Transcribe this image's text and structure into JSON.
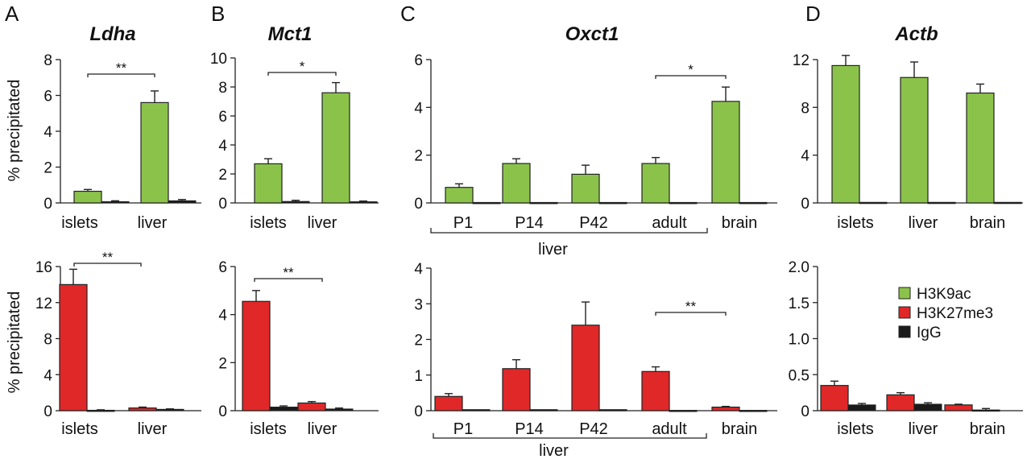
{
  "panels": {
    "A": {
      "letter": "A",
      "title": "Ldha"
    },
    "B": {
      "letter": "B",
      "title": "Mct1"
    },
    "C": {
      "letter": "C",
      "title": "Oxct1"
    },
    "D": {
      "letter": "D",
      "title": "Actb"
    }
  },
  "ylabel": "% precipitated",
  "legend": [
    {
      "name": "H3K9ac",
      "color": "#8bc34a"
    },
    {
      "name": "H3K27me3",
      "color": "#e02828"
    },
    {
      "name": "IgG",
      "color": "#1a1a1a"
    }
  ],
  "colors": {
    "H3K9ac": "#8bc34a",
    "H3K27me3": "#e02828",
    "IgG": "#1a1a1a",
    "stroke": "#222222"
  },
  "chart_data": [
    {
      "id": "A_top",
      "type": "bar",
      "title": "Ldha",
      "ylabel": "% precipitated",
      "categories": [
        "islets",
        "liver"
      ],
      "ylim": [
        0,
        8
      ],
      "yticks": [
        "0",
        "2",
        "4",
        "6",
        "8"
      ],
      "series": [
        {
          "name": "H3K9ac",
          "values": [
            0.65,
            5.6
          ],
          "errors": [
            0.1,
            0.65
          ]
        },
        {
          "name": "IgG",
          "values": [
            0.07,
            0.12
          ],
          "errors": [
            0.05,
            0.07
          ]
        }
      ],
      "significance": [
        {
          "from": "islets",
          "to": "liver",
          "label": "**"
        }
      ]
    },
    {
      "id": "B_top",
      "type": "bar",
      "title": "Mct1",
      "ylabel": "",
      "categories": [
        "islets",
        "liver"
      ],
      "ylim": [
        0,
        10
      ],
      "yticks": [
        "0",
        "2",
        "4",
        "6",
        "8",
        "10"
      ],
      "series": [
        {
          "name": "H3K9ac",
          "values": [
            2.7,
            7.6
          ],
          "errors": [
            0.35,
            0.7
          ]
        },
        {
          "name": "IgG",
          "values": [
            0.1,
            0.08
          ],
          "errors": [
            0.08,
            0.05
          ]
        }
      ],
      "significance": [
        {
          "from": "islets",
          "to": "liver",
          "label": "*"
        }
      ]
    },
    {
      "id": "C_top",
      "type": "bar",
      "title": "Oxct1",
      "ylabel": "",
      "categories": [
        "P1",
        "P14",
        "P42",
        "adult",
        "brain"
      ],
      "group_label": "liver",
      "ylim": [
        0,
        6
      ],
      "yticks": [
        "0",
        "2",
        "4",
        "6"
      ],
      "series": [
        {
          "name": "H3K9ac",
          "values": [
            0.65,
            1.65,
            1.2,
            1.65,
            4.25
          ],
          "errors": [
            0.15,
            0.2,
            0.38,
            0.25,
            0.6
          ]
        },
        {
          "name": "IgG",
          "values": [
            0.02,
            0.02,
            0.02,
            0.02,
            0.02
          ],
          "errors": [
            0,
            0,
            0,
            0,
            0
          ]
        }
      ],
      "significance": [
        {
          "from": "adult",
          "to": "brain",
          "label": "*"
        }
      ]
    },
    {
      "id": "D_top",
      "type": "bar",
      "title": "Actb",
      "ylabel": "",
      "categories": [
        "islets",
        "liver",
        "brain"
      ],
      "ylim": [
        0,
        12
      ],
      "yticks": [
        "0",
        "4",
        "8",
        "12"
      ],
      "series": [
        {
          "name": "H3K9ac",
          "values": [
            11.5,
            10.5,
            9.2
          ],
          "errors": [
            0.85,
            1.3,
            0.75
          ]
        },
        {
          "name": "IgG",
          "values": [
            0.05,
            0.05,
            0.05
          ],
          "errors": [
            0,
            0,
            0
          ]
        }
      ],
      "significance": []
    },
    {
      "id": "A_bot",
      "type": "bar",
      "title": "",
      "ylabel": "% precipitated",
      "categories": [
        "islets",
        "liver"
      ],
      "ylim": [
        0,
        16
      ],
      "yticks": [
        "0",
        "4",
        "8",
        "12",
        "16"
      ],
      "series": [
        {
          "name": "H3K27me3",
          "values": [
            14.0,
            0.3
          ],
          "errors": [
            1.7,
            0.1
          ]
        },
        {
          "name": "IgG",
          "values": [
            0.05,
            0.15
          ],
          "errors": [
            0.05,
            0.05
          ]
        }
      ],
      "significance": [
        {
          "from": "islets",
          "to": "liver",
          "label": "**"
        }
      ]
    },
    {
      "id": "B_bot",
      "type": "bar",
      "title": "",
      "ylabel": "",
      "categories": [
        "islets",
        "liver"
      ],
      "ylim": [
        0,
        6
      ],
      "yticks": [
        "0",
        "2",
        "4",
        "6"
      ],
      "series": [
        {
          "name": "H3K27me3",
          "values": [
            4.55,
            0.32
          ],
          "errors": [
            0.45,
            0.06
          ]
        },
        {
          "name": "IgG",
          "values": [
            0.15,
            0.07
          ],
          "errors": [
            0.05,
            0.04
          ]
        }
      ],
      "significance": [
        {
          "from": "islets",
          "to": "liver",
          "label": "**"
        }
      ]
    },
    {
      "id": "C_bot",
      "type": "bar",
      "title": "",
      "ylabel": "",
      "categories": [
        "P1",
        "P14",
        "P42",
        "adult",
        "brain"
      ],
      "group_label": "liver",
      "ylim": [
        0,
        4
      ],
      "yticks": [
        "0",
        "1",
        "2",
        "3",
        "4"
      ],
      "series": [
        {
          "name": "H3K27me3",
          "values": [
            0.4,
            1.18,
            2.4,
            1.1,
            0.1
          ],
          "errors": [
            0.08,
            0.25,
            0.65,
            0.13,
            0.02
          ]
        },
        {
          "name": "IgG",
          "values": [
            0.03,
            0.03,
            0.03,
            0.01,
            0.01
          ],
          "errors": [
            0,
            0,
            0,
            0,
            0
          ]
        }
      ],
      "significance": [
        {
          "from": "adult",
          "to": "brain",
          "label": "**"
        }
      ]
    },
    {
      "id": "D_bot",
      "type": "bar",
      "title": "",
      "ylabel": "",
      "categories": [
        "islets",
        "liver",
        "brain"
      ],
      "ylim": [
        0,
        2.0
      ],
      "yticks": [
        "0",
        "0.5",
        "1.0",
        "1.5",
        "2.0"
      ],
      "series": [
        {
          "name": "H3K27me3",
          "values": [
            0.35,
            0.22,
            0.08
          ],
          "errors": [
            0.06,
            0.03,
            0.01
          ]
        },
        {
          "name": "IgG",
          "values": [
            0.08,
            0.09,
            0.01
          ],
          "errors": [
            0.02,
            0.02,
            0.02
          ]
        }
      ],
      "significance": []
    }
  ]
}
